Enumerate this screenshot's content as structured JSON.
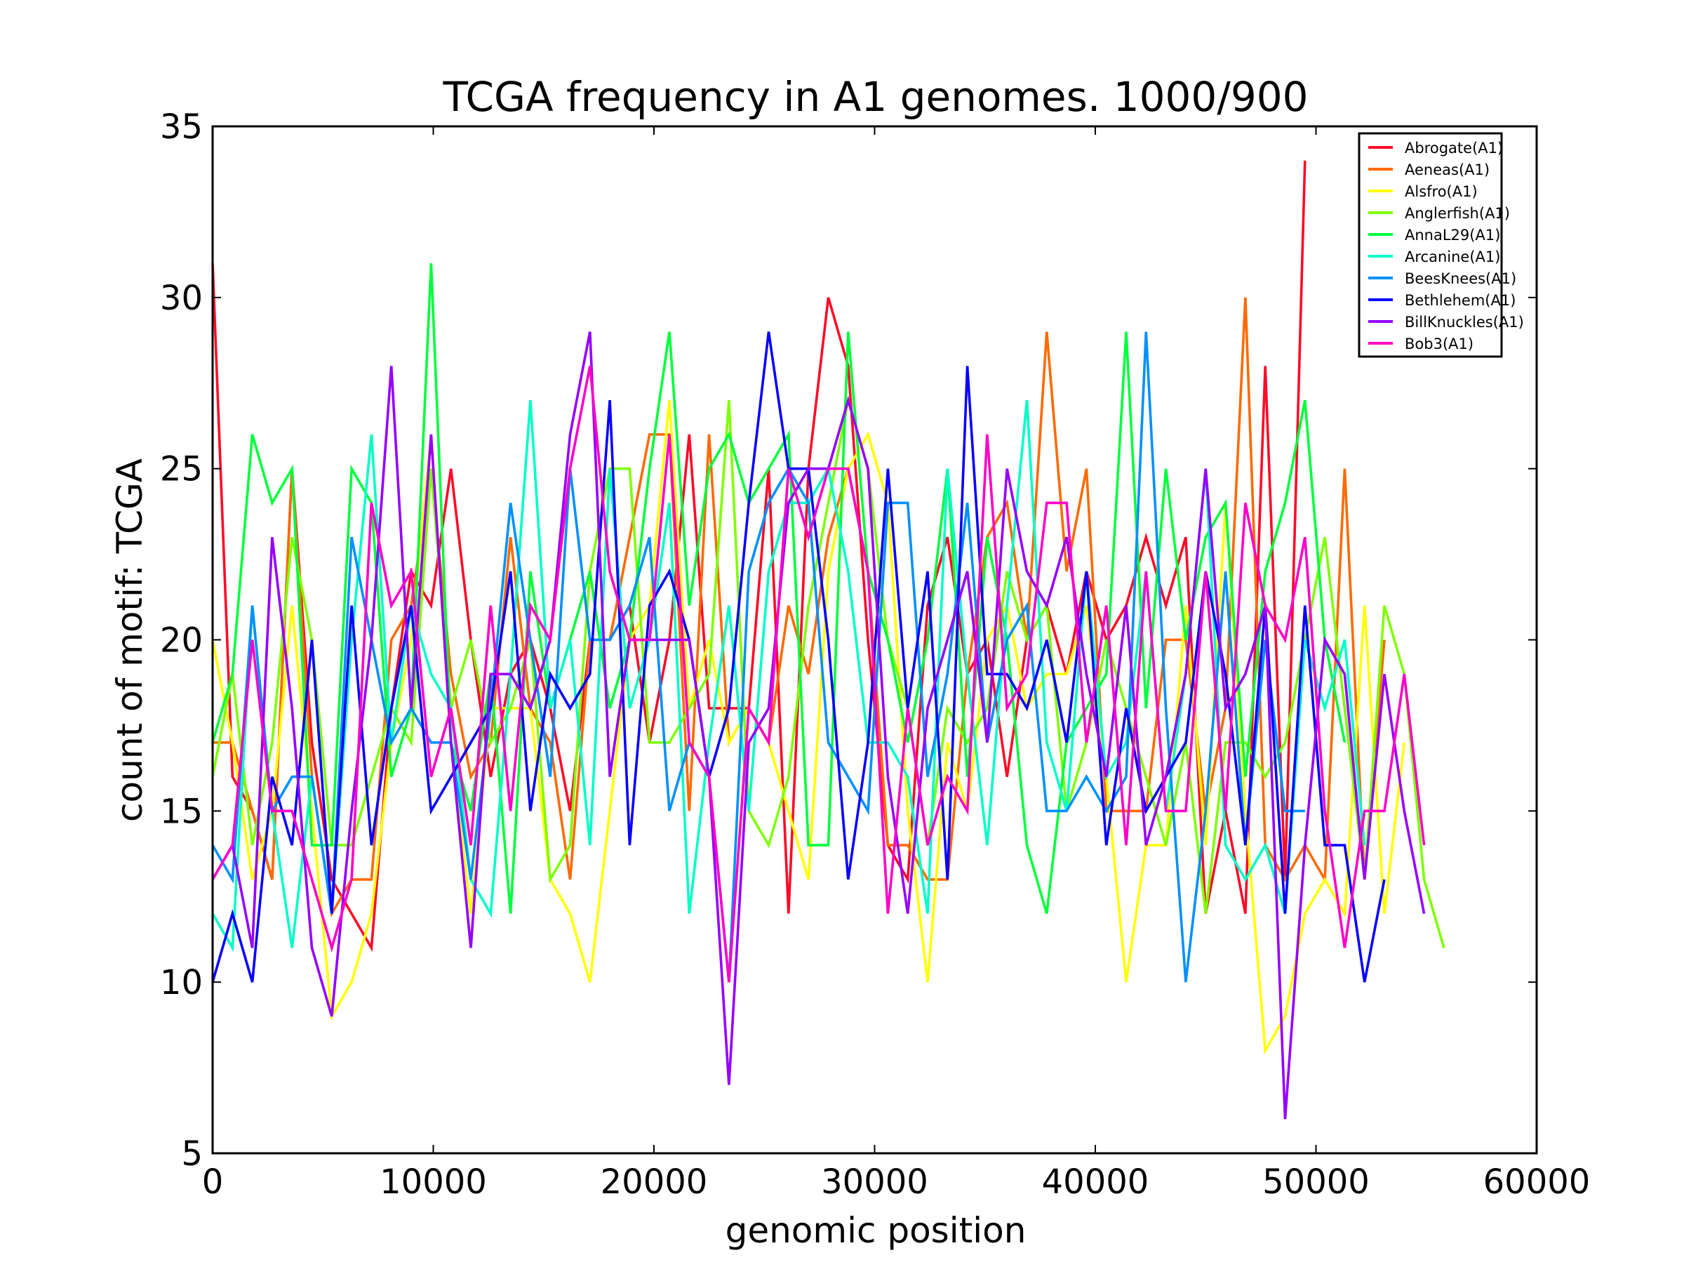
{
  "chart_data": {
    "type": "line",
    "title": "TCGA frequency in A1 genomes. 1000/900",
    "xlabel": "genomic position",
    "ylabel": "count of motif: TCGA",
    "xlim": [
      0,
      60000
    ],
    "ylim": [
      5,
      35
    ],
    "xticks": [
      0,
      10000,
      20000,
      30000,
      40000,
      50000,
      60000
    ],
    "yticks": [
      5,
      10,
      15,
      20,
      25,
      30,
      35
    ],
    "xtick_labels": [
      "0",
      "10000",
      "20000",
      "30000",
      "40000",
      "50000",
      "60000"
    ],
    "ytick_labels": [
      "5",
      "10",
      "15",
      "20",
      "25",
      "30",
      "35"
    ],
    "grid": false,
    "legend_position": "top-right",
    "x_step": 900,
    "series": [
      {
        "name": "Abrogate(A1)",
        "color": "#ff0a28",
        "values": [
          31,
          16,
          15,
          13,
          25,
          17,
          13,
          12,
          11,
          18,
          22,
          21,
          25,
          20,
          16,
          19,
          20,
          18,
          15,
          20,
          20,
          21,
          17,
          20,
          26,
          18,
          18,
          18,
          25,
          12,
          25,
          30,
          28,
          20,
          14,
          13,
          21,
          23,
          19,
          20,
          16,
          20,
          21,
          19,
          22,
          20,
          21,
          23,
          21,
          23,
          12,
          15,
          12,
          28,
          13,
          34
        ]
      },
      {
        "name": "Aeneas(A1)",
        "color": "#ff6a00",
        "values": [
          17,
          17,
          15,
          13,
          25,
          16,
          12,
          13,
          13,
          20,
          21,
          25,
          19,
          16,
          17,
          23,
          18,
          17,
          13,
          20,
          20,
          23,
          26,
          26,
          15,
          26,
          17,
          18,
          17,
          21,
          19,
          23,
          25,
          22,
          14,
          14,
          13,
          13,
          19,
          23,
          24,
          20,
          29,
          22,
          25,
          15,
          15,
          15,
          20,
          20,
          15,
          18,
          30,
          14,
          13,
          14,
          13,
          25,
          13,
          20
        ]
      },
      {
        "name": "Alsfro(A1)",
        "color": "#ffff00",
        "values": [
          20,
          17,
          13,
          15,
          21,
          15,
          9,
          10,
          12,
          17,
          20,
          26,
          17,
          12,
          18,
          18,
          18,
          13,
          12,
          10,
          15,
          20,
          21,
          27,
          18,
          20,
          17,
          18,
          17,
          15,
          13,
          22,
          25,
          26,
          24,
          15,
          10,
          17,
          15,
          20,
          21,
          18,
          19,
          19,
          21,
          16,
          10,
          14,
          14,
          21,
          14,
          24,
          15,
          8,
          9,
          12,
          13,
          12,
          21,
          12,
          17
        ]
      },
      {
        "name": "Anglerfish(A1)",
        "color": "#7fff00",
        "values": [
          16,
          19,
          14,
          17,
          23,
          20,
          14,
          14,
          16,
          18,
          17,
          25,
          18,
          20,
          17,
          18,
          20,
          13,
          14,
          22,
          25,
          25,
          17,
          17,
          18,
          19,
          27,
          15,
          14,
          16,
          21,
          24,
          27,
          25,
          20,
          18,
          14,
          18,
          17,
          18,
          22,
          20,
          21,
          15,
          17,
          20,
          18,
          16,
          14,
          17,
          12,
          17,
          17,
          16,
          17,
          20,
          23,
          18,
          13,
          21,
          19,
          13,
          11
        ]
      },
      {
        "name": "AnnaL29(A1)",
        "color": "#00ff3c",
        "values": [
          17,
          19,
          26,
          24,
          25,
          14,
          14,
          25,
          24,
          16,
          18,
          31,
          17,
          15,
          19,
          12,
          22,
          18,
          20,
          22,
          18,
          20,
          25,
          29,
          21,
          25,
          26,
          24,
          25,
          26,
          14,
          14,
          29,
          22,
          20,
          17,
          20,
          25,
          16,
          23,
          20,
          14,
          12,
          17,
          18,
          19,
          29,
          18,
          25,
          20,
          23,
          24,
          16,
          22,
          24,
          27,
          20,
          17
        ]
      },
      {
        "name": "Arcanine(A1)",
        "color": "#00ffc8",
        "values": [
          12,
          11,
          21,
          15,
          11,
          16,
          12,
          20,
          26,
          17,
          21,
          19,
          18,
          13,
          12,
          19,
          27,
          18,
          20,
          14,
          25,
          18,
          20,
          24,
          12,
          17,
          21,
          15,
          22,
          24,
          24,
          25,
          22,
          17,
          17,
          16,
          12,
          25,
          19,
          14,
          21,
          27,
          17,
          15,
          22,
          16,
          17,
          22,
          15,
          19,
          25,
          14,
          13,
          14,
          12,
          20,
          18,
          20,
          14
        ]
      },
      {
        "name": "BeesKnees(A1)",
        "color": "#0090ff",
        "values": [
          14,
          13,
          21,
          15,
          16,
          16,
          12,
          23,
          20,
          17,
          18,
          17,
          17,
          13,
          18,
          24,
          20,
          16,
          25,
          20,
          20,
          21,
          23,
          15,
          17,
          16,
          10,
          22,
          24,
          25,
          24,
          17,
          16,
          15,
          24,
          24,
          16,
          19,
          24,
          17,
          20,
          21,
          15,
          15,
          16,
          15,
          16,
          29,
          18,
          10,
          15,
          22,
          14,
          20,
          15,
          15
        ]
      },
      {
        "name": "Bethlehem(A1)",
        "color": "#0a00ff",
        "values": [
          10,
          12,
          10,
          16,
          14,
          20,
          12,
          21,
          14,
          18,
          21,
          15,
          16,
          17,
          18,
          22,
          15,
          19,
          18,
          19,
          27,
          14,
          21,
          22,
          20,
          16,
          18,
          24,
          29,
          25,
          25,
          20,
          13,
          17,
          25,
          18,
          22,
          13,
          28,
          19,
          19,
          18,
          20,
          17,
          22,
          14,
          18,
          15,
          16,
          17,
          22,
          19,
          14,
          21,
          12,
          21,
          14,
          14,
          10,
          13
        ]
      },
      {
        "name": "BillKnuckles(A1)",
        "color": "#9600ff",
        "values": [
          13,
          14,
          11,
          23,
          18,
          11,
          9,
          15,
          20,
          28,
          18,
          26,
          17,
          11,
          19,
          19,
          18,
          20,
          26,
          29,
          16,
          20,
          20,
          20,
          20,
          16,
          7,
          17,
          18,
          24,
          25,
          25,
          27,
          25,
          16,
          12,
          18,
          20,
          22,
          17,
          25,
          22,
          21,
          23,
          19,
          16,
          21,
          14,
          16,
          19,
          25,
          18,
          19,
          21,
          6,
          14,
          20,
          19,
          13,
          19,
          15,
          12
        ]
      },
      {
        "name": "Bob3(A1)",
        "color": "#ff00c8",
        "values": [
          13,
          14,
          20,
          15,
          15,
          13,
          11,
          13,
          24,
          21,
          22,
          16,
          18,
          14,
          21,
          15,
          21,
          20,
          25,
          28,
          22,
          20,
          20,
          26,
          17,
          16,
          10,
          18,
          17,
          25,
          23,
          25,
          25,
          22,
          12,
          18,
          14,
          16,
          15,
          26,
          18,
          19,
          24,
          24,
          17,
          21,
          14,
          22,
          15,
          15,
          22,
          15,
          24,
          21,
          20,
          23,
          15,
          11,
          15,
          15,
          19,
          14
        ]
      }
    ]
  }
}
